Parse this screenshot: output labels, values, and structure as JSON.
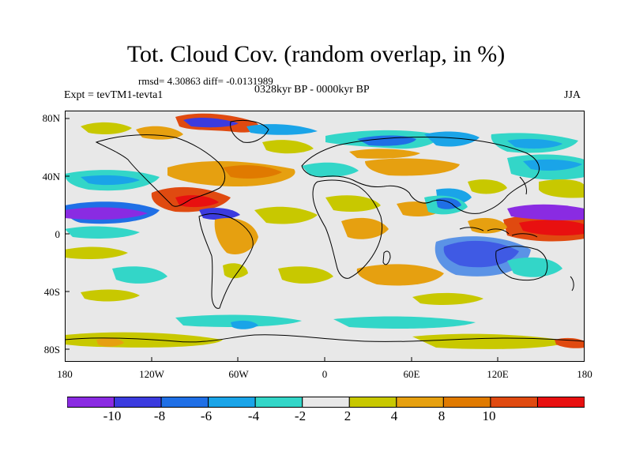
{
  "title": "Tot. Cloud Cov. (random overlap, in %)",
  "stats": "rmsd= 4.30863 diff= -0.0131989",
  "period": "0328kyr BP - 0000kyr BP",
  "experiment": "Expt = tevTM1-tevta1",
  "season": "JJA",
  "lat_labels": [
    "80N",
    "40N",
    "0",
    "40S",
    "80S"
  ],
  "lon_labels": [
    "180",
    "120W",
    "60W",
    "0",
    "60E",
    "120E",
    "180"
  ],
  "colorbar": {
    "labels": [
      "-10",
      "-8",
      "-6",
      "-4",
      "-2",
      "2",
      "4",
      "8",
      "10"
    ],
    "colors": [
      "#8a2be2",
      "#3b3bdf",
      "#1f6fe6",
      "#1aa4e8",
      "#33d6c8",
      "#e8e8e8",
      "#c8c800",
      "#e6a010",
      "#e07a00",
      "#e04a10",
      "#e81010"
    ]
  },
  "map_colors": {
    "neutral": "#e8e8e8",
    "c_m12": "#8a2be2",
    "c_m10": "#3b3bdf",
    "c_m8": "#1f6fe6",
    "c_m6": "#1aa4e8",
    "c_m4": "#33d6c8",
    "c_p2": "#c8c800",
    "c_p4": "#e6a010",
    "c_p8": "#e07a00",
    "c_p10": "#e04a10",
    "c_p12": "#e81010"
  }
}
